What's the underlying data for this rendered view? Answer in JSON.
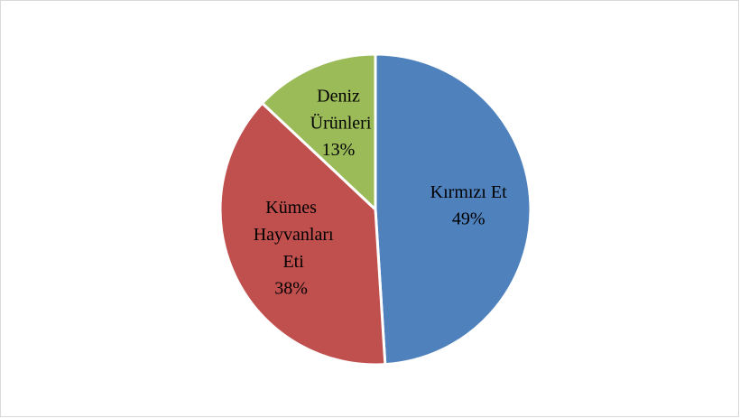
{
  "chart_data": {
    "type": "pie",
    "categories": [
      "Kırmızı Et",
      "Kümes Hayvanları Eti",
      "Deniz Ürünleri"
    ],
    "values": [
      49,
      38,
      13
    ],
    "value_labels": [
      "49%",
      "38%",
      "13%"
    ],
    "colors": [
      "#4f81bd",
      "#c0504d",
      "#9bbb59"
    ]
  }
}
